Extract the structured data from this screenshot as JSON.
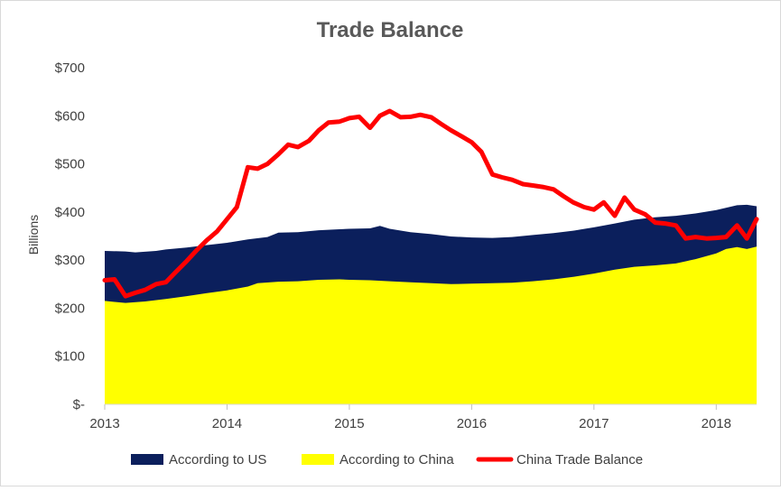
{
  "chart_data": {
    "type": "area",
    "title": "Trade Balance",
    "xlabel": "",
    "ylabel": "Billions",
    "x_range": [
      2013.0,
      2018.33
    ],
    "ylim": [
      0,
      700
    ],
    "x_ticks": [
      {
        "value": 2013,
        "label": "2013"
      },
      {
        "value": 2014,
        "label": "2014"
      },
      {
        "value": 2015,
        "label": "2015"
      },
      {
        "value": 2016,
        "label": "2016"
      },
      {
        "value": 2017,
        "label": "2017"
      },
      {
        "value": 2018,
        "label": "2018"
      }
    ],
    "y_ticks": [
      {
        "value": 0,
        "label": "$-"
      },
      {
        "value": 100,
        "label": "$100"
      },
      {
        "value": 200,
        "label": "$200"
      },
      {
        "value": 300,
        "label": "$300"
      },
      {
        "value": 400,
        "label": "$400"
      },
      {
        "value": 500,
        "label": "$500"
      },
      {
        "value": 600,
        "label": "$600"
      },
      {
        "value": 700,
        "label": "$700"
      }
    ],
    "grid": false,
    "legend": "bottom",
    "series": [
      {
        "name": "According to US",
        "kind": "area",
        "color": "#0b1f5c",
        "points": [
          [
            2013.0,
            319
          ],
          [
            2013.17,
            318
          ],
          [
            2013.25,
            316
          ],
          [
            2013.42,
            319
          ],
          [
            2013.5,
            322
          ],
          [
            2013.67,
            326
          ],
          [
            2013.83,
            331
          ],
          [
            2014.0,
            336
          ],
          [
            2014.17,
            343
          ],
          [
            2014.33,
            348
          ],
          [
            2014.42,
            357
          ],
          [
            2014.58,
            358
          ],
          [
            2014.75,
            362
          ],
          [
            2014.92,
            364
          ],
          [
            2015.0,
            365
          ],
          [
            2015.17,
            366
          ],
          [
            2015.25,
            371
          ],
          [
            2015.33,
            365
          ],
          [
            2015.5,
            358
          ],
          [
            2015.67,
            354
          ],
          [
            2015.83,
            349
          ],
          [
            2016.0,
            347
          ],
          [
            2016.17,
            346
          ],
          [
            2016.33,
            348
          ],
          [
            2016.5,
            352
          ],
          [
            2016.67,
            356
          ],
          [
            2016.83,
            361
          ],
          [
            2017.0,
            368
          ],
          [
            2017.17,
            376
          ],
          [
            2017.33,
            384
          ],
          [
            2017.5,
            389
          ],
          [
            2017.67,
            392
          ],
          [
            2017.83,
            397
          ],
          [
            2018.0,
            404
          ],
          [
            2018.17,
            414
          ],
          [
            2018.25,
            415
          ],
          [
            2018.33,
            412
          ]
        ]
      },
      {
        "name": "According to China",
        "kind": "area",
        "color": "#ffff00",
        "points": [
          [
            2013.0,
            215
          ],
          [
            2013.08,
            213
          ],
          [
            2013.17,
            211
          ],
          [
            2013.33,
            214
          ],
          [
            2013.5,
            219
          ],
          [
            2013.67,
            225
          ],
          [
            2013.83,
            231
          ],
          [
            2014.0,
            237
          ],
          [
            2014.17,
            245
          ],
          [
            2014.25,
            252
          ],
          [
            2014.42,
            255
          ],
          [
            2014.58,
            256
          ],
          [
            2014.75,
            259
          ],
          [
            2014.92,
            260
          ],
          [
            2015.0,
            259
          ],
          [
            2015.17,
            258
          ],
          [
            2015.33,
            256
          ],
          [
            2015.5,
            254
          ],
          [
            2015.67,
            252
          ],
          [
            2015.83,
            250
          ],
          [
            2016.0,
            251
          ],
          [
            2016.17,
            252
          ],
          [
            2016.33,
            253
          ],
          [
            2016.5,
            256
          ],
          [
            2016.67,
            260
          ],
          [
            2016.83,
            265
          ],
          [
            2017.0,
            272
          ],
          [
            2017.17,
            280
          ],
          [
            2017.33,
            286
          ],
          [
            2017.5,
            289
          ],
          [
            2017.67,
            293
          ],
          [
            2017.83,
            302
          ],
          [
            2018.0,
            314
          ],
          [
            2018.08,
            323
          ],
          [
            2018.17,
            327
          ],
          [
            2018.25,
            323
          ],
          [
            2018.33,
            328
          ]
        ]
      },
      {
        "name": "China Trade Balance",
        "kind": "line",
        "color": "#ff0000",
        "points": [
          [
            2013.0,
            258
          ],
          [
            2013.08,
            260
          ],
          [
            2013.17,
            225
          ],
          [
            2013.25,
            232
          ],
          [
            2013.33,
            238
          ],
          [
            2013.42,
            250
          ],
          [
            2013.5,
            254
          ],
          [
            2013.58,
            275
          ],
          [
            2013.67,
            298
          ],
          [
            2013.75,
            320
          ],
          [
            2013.83,
            340
          ],
          [
            2013.92,
            360
          ],
          [
            2014.0,
            385
          ],
          [
            2014.08,
            410
          ],
          [
            2014.17,
            493
          ],
          [
            2014.25,
            490
          ],
          [
            2014.33,
            500
          ],
          [
            2014.42,
            520
          ],
          [
            2014.5,
            540
          ],
          [
            2014.58,
            535
          ],
          [
            2014.67,
            548
          ],
          [
            2014.75,
            570
          ],
          [
            2014.83,
            586
          ],
          [
            2014.92,
            588
          ],
          [
            2015.0,
            595
          ],
          [
            2015.08,
            598
          ],
          [
            2015.17,
            575
          ],
          [
            2015.25,
            600
          ],
          [
            2015.33,
            610
          ],
          [
            2015.42,
            597
          ],
          [
            2015.5,
            598
          ],
          [
            2015.58,
            602
          ],
          [
            2015.67,
            597
          ],
          [
            2015.75,
            583
          ],
          [
            2015.83,
            570
          ],
          [
            2015.92,
            557
          ],
          [
            2016.0,
            545
          ],
          [
            2016.08,
            525
          ],
          [
            2016.17,
            478
          ],
          [
            2016.25,
            472
          ],
          [
            2016.33,
            467
          ],
          [
            2016.42,
            458
          ],
          [
            2016.5,
            455
          ],
          [
            2016.58,
            452
          ],
          [
            2016.67,
            447
          ],
          [
            2016.75,
            433
          ],
          [
            2016.83,
            420
          ],
          [
            2016.92,
            410
          ],
          [
            2017.0,
            405
          ],
          [
            2017.08,
            420
          ],
          [
            2017.17,
            392
          ],
          [
            2017.25,
            430
          ],
          [
            2017.33,
            405
          ],
          [
            2017.42,
            395
          ],
          [
            2017.5,
            378
          ],
          [
            2017.58,
            376
          ],
          [
            2017.67,
            372
          ],
          [
            2017.75,
            345
          ],
          [
            2017.83,
            348
          ],
          [
            2017.92,
            345
          ],
          [
            2018.0,
            346
          ],
          [
            2018.08,
            348
          ],
          [
            2018.17,
            372
          ],
          [
            2018.25,
            345
          ],
          [
            2018.33,
            385
          ]
        ]
      }
    ]
  }
}
